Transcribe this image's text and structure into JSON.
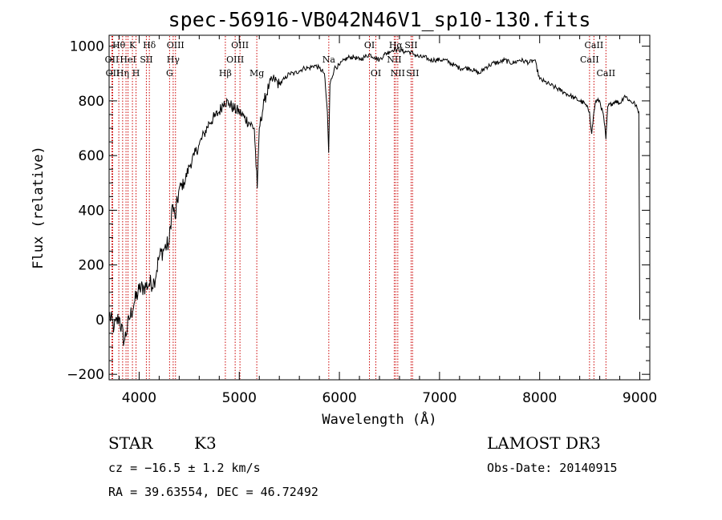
{
  "chart_data": {
    "type": "line",
    "title": "spec-56916-VB042N46V1_sp10-130.fits",
    "xlabel": "Wavelength (Å)",
    "ylabel": "Flux (relative)",
    "xlim": [
      3700,
      9100
    ],
    "ylim": [
      -220,
      1040
    ],
    "xticks": [
      4000,
      5000,
      6000,
      7000,
      8000,
      9000
    ],
    "yticks": [
      -200,
      0,
      200,
      400,
      600,
      800,
      1000
    ],
    "x_tick_labels": [
      "4000",
      "5000",
      "6000",
      "7000",
      "8000",
      "9000"
    ],
    "y_tick_labels": [
      "−200",
      "0",
      "200",
      "400",
      "600",
      "800",
      "1000"
    ],
    "series": [
      {
        "name": "spectrum",
        "x": [
          3700,
          3750,
          3800,
          3850,
          3900,
          3950,
          4000,
          4050,
          4100,
          4150,
          4200,
          4250,
          4300,
          4330,
          4360,
          4400,
          4450,
          4500,
          4550,
          4600,
          4650,
          4700,
          4750,
          4800,
          4850,
          4900,
          4950,
          5000,
          5050,
          5100,
          5150,
          5180,
          5200,
          5250,
          5300,
          5350,
          5400,
          5450,
          5500,
          5550,
          5600,
          5650,
          5700,
          5750,
          5800,
          5850,
          5880,
          5893,
          5906,
          5950,
          6000,
          6050,
          6100,
          6150,
          6200,
          6250,
          6300,
          6350,
          6400,
          6450,
          6500,
          6550,
          6563,
          6580,
          6650,
          6700,
          6750,
          6800,
          6850,
          6900,
          6950,
          7000,
          7050,
          7100,
          7150,
          7200,
          7250,
          7300,
          7350,
          7400,
          7450,
          7500,
          7550,
          7600,
          7650,
          7700,
          7750,
          7800,
          7850,
          7900,
          7950,
          8000,
          8050,
          8100,
          8150,
          8200,
          8250,
          8300,
          8350,
          8400,
          8450,
          8498,
          8520,
          8542,
          8560,
          8600,
          8640,
          8662,
          8680,
          8720,
          8760,
          8800,
          8850,
          8900,
          8950,
          8990,
          9000
        ],
        "y": [
          20,
          -30,
          10,
          -80,
          0,
          60,
          110,
          120,
          130,
          140,
          230,
          260,
          280,
          420,
          370,
          480,
          500,
          560,
          600,
          640,
          680,
          720,
          740,
          760,
          800,
          790,
          770,
          760,
          740,
          720,
          700,
          480,
          700,
          800,
          860,
          880,
          860,
          880,
          900,
          900,
          910,
          920,
          920,
          930,
          920,
          900,
          760,
          610,
          860,
          920,
          930,
          950,
          960,
          960,
          950,
          960,
          970,
          960,
          950,
          970,
          980,
          990,
          985,
          990,
          980,
          980,
          970,
          960,
          960,
          950,
          950,
          950,
          950,
          940,
          930,
          920,
          920,
          920,
          910,
          900,
          920,
          930,
          940,
          940,
          950,
          940,
          940,
          950,
          945,
          940,
          950,
          880,
          870,
          860,
          850,
          840,
          830,
          820,
          810,
          800,
          790,
          760,
          680,
          760,
          800,
          800,
          740,
          660,
          780,
          790,
          800,
          790,
          820,
          800,
          790,
          760,
          0
        ]
      }
    ],
    "lines": [
      {
        "x": 3728,
        "label": "OII",
        "row": 1
      },
      {
        "x": 3736,
        "label": "OII",
        "row": 2
      },
      {
        "x": 3797,
        "label": "Hθ",
        "row": 0
      },
      {
        "x": 3835,
        "label": "Hη",
        "row": 2
      },
      {
        "x": 3869,
        "label": "",
        "row": 2
      },
      {
        "x": 3889,
        "label": "HeI",
        "row": 1
      },
      {
        "x": 3933,
        "label": "K",
        "row": 0
      },
      {
        "x": 3969,
        "label": "H",
        "row": 2
      },
      {
        "x": 4072,
        "label": "SII",
        "row": 1
      },
      {
        "x": 4102,
        "label": "Hδ",
        "row": 0
      },
      {
        "x": 4304,
        "label": "G",
        "row": 2
      },
      {
        "x": 4340,
        "label": "Hγ",
        "row": 1
      },
      {
        "x": 4363,
        "label": "OIII",
        "row": 0
      },
      {
        "x": 4861,
        "label": "Hβ",
        "row": 2
      },
      {
        "x": 4959,
        "label": "OIII",
        "row": 1
      },
      {
        "x": 5007,
        "label": "OIII",
        "row": 0
      },
      {
        "x": 5175,
        "label": "Mg",
        "row": 2
      },
      {
        "x": 5894,
        "label": "Na",
        "row": 1
      },
      {
        "x": 6300,
        "label": "OI",
        "row": 0
      },
      {
        "x": 6364,
        "label": "OI",
        "row": 2
      },
      {
        "x": 6548,
        "label": "NII",
        "row": 1
      },
      {
        "x": 6563,
        "label": "Hα",
        "row": 0
      },
      {
        "x": 6583,
        "label": "NII",
        "row": 2
      },
      {
        "x": 6716,
        "label": "SII",
        "row": 0
      },
      {
        "x": 6731,
        "label": "SII",
        "row": 2
      },
      {
        "x": 8498,
        "label": "CaII",
        "row": 1
      },
      {
        "x": 8542,
        "label": "CaII",
        "row": 0
      },
      {
        "x": 8662,
        "label": "CaII",
        "row": 2
      }
    ]
  },
  "info": {
    "class": "STAR",
    "subclass": "K3",
    "survey": "LAMOST DR3",
    "redshift": "cz = −16.5 ± 1.2 km/s",
    "obsdate": "Obs-Date: 20140915",
    "coords": "RA =  39.63554, DEC =  46.72492"
  },
  "colors": {
    "spectrum": "#000000",
    "line_marker": "#cc0000",
    "axis": "#000000"
  }
}
